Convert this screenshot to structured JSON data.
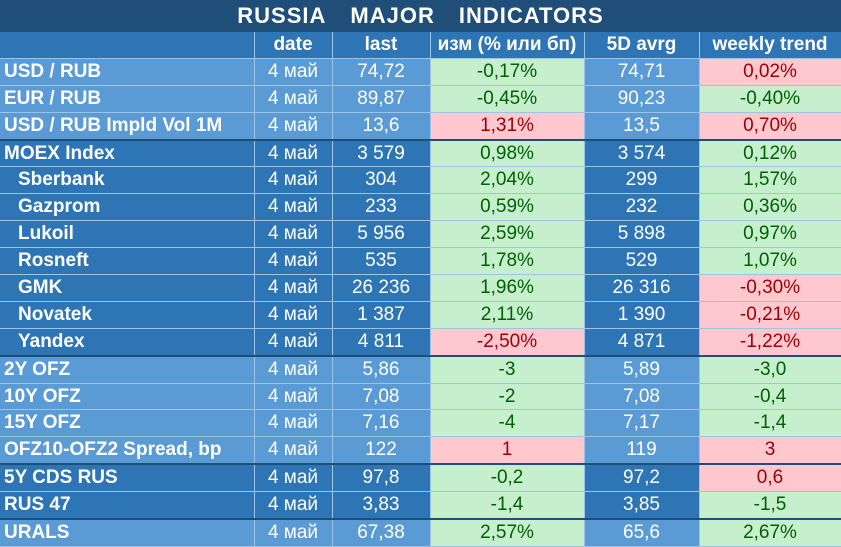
{
  "title": {
    "w1": "RUSSIA",
    "w2": "MAJOR",
    "w3": "INDICATORS"
  },
  "headers": [
    "",
    "date",
    "last",
    "изм (% или бп)",
    "5D avrg",
    "weekly trend"
  ],
  "colors": {
    "header": "#1f4e79",
    "dark_blue": "#2e75b6",
    "light_blue": "#5b9bd5",
    "pos_bg": "#c6efce",
    "pos_fg": "#006100",
    "neg_bg": "#ffc7ce",
    "neg_fg": "#9c0006"
  },
  "rows": [
    {
      "name": "USD / RUB",
      "date": "4 май",
      "last": "74,72",
      "chg": "-0,17%",
      "chg_class": "pos",
      "avg": "74,71",
      "trend": "0,02%",
      "trend_class": "neg",
      "shade": "light",
      "sub": false,
      "sep": false
    },
    {
      "name": "EUR / RUB",
      "date": "4 май",
      "last": "89,87",
      "chg": "-0,45%",
      "chg_class": "pos",
      "avg": "90,23",
      "trend": "-0,40%",
      "trend_class": "pos",
      "shade": "light",
      "sub": false,
      "sep": false
    },
    {
      "name": "USD / RUB Impld Vol 1M",
      "date": "4 май",
      "last": "13,6",
      "chg": "1,31%",
      "chg_class": "neg",
      "avg": "13,5",
      "trend": "0,70%",
      "trend_class": "neg",
      "shade": "light",
      "sub": false,
      "sep": false
    },
    {
      "name": "MOEX Index",
      "date": "4 май",
      "last": "3 579",
      "chg": "0,98%",
      "chg_class": "pos",
      "avg": "3 574",
      "trend": "0,12%",
      "trend_class": "pos",
      "shade": "dark",
      "sub": false,
      "sep": true
    },
    {
      "name": "Sberbank",
      "date": "4 май",
      "last": "304",
      "chg": "2,04%",
      "chg_class": "pos",
      "avg": "299",
      "trend": "1,57%",
      "trend_class": "pos",
      "shade": "dark",
      "sub": true,
      "sep": false
    },
    {
      "name": "Gazprom",
      "date": "4 май",
      "last": "233",
      "chg": "0,59%",
      "chg_class": "pos",
      "avg": "232",
      "trend": "0,36%",
      "trend_class": "pos",
      "shade": "dark",
      "sub": true,
      "sep": false
    },
    {
      "name": "Lukoil",
      "date": "4 май",
      "last": "5 956",
      "chg": "2,59%",
      "chg_class": "pos",
      "avg": "5 898",
      "trend": "0,97%",
      "trend_class": "pos",
      "shade": "dark",
      "sub": true,
      "sep": false
    },
    {
      "name": "Rosneft",
      "date": "4 май",
      "last": "535",
      "chg": "1,78%",
      "chg_class": "pos",
      "avg": "529",
      "trend": "1,07%",
      "trend_class": "pos",
      "shade": "dark",
      "sub": true,
      "sep": false
    },
    {
      "name": "GMK",
      "date": "4 май",
      "last": "26 236",
      "chg": "1,96%",
      "chg_class": "pos",
      "avg": "26 316",
      "trend": "-0,30%",
      "trend_class": "neg",
      "shade": "dark",
      "sub": true,
      "sep": false
    },
    {
      "name": "Novatek",
      "date": "4 май",
      "last": "1 387",
      "chg": "2,11%",
      "chg_class": "pos",
      "avg": "1 390",
      "trend": "-0,21%",
      "trend_class": "neg",
      "shade": "dark",
      "sub": true,
      "sep": false
    },
    {
      "name": "Yandex",
      "date": "4 май",
      "last": "4 811",
      "chg": "-2,50%",
      "chg_class": "neg",
      "avg": "4 871",
      "trend": "-1,22%",
      "trend_class": "neg",
      "shade": "dark",
      "sub": true,
      "sep": false
    },
    {
      "name": "2Y OFZ",
      "date": "4 май",
      "last": "5,86",
      "chg": "-3",
      "chg_class": "pos",
      "avg": "5,89",
      "trend": "-3,0",
      "trend_class": "pos",
      "shade": "light",
      "sub": false,
      "sep": true
    },
    {
      "name": "10Y OFZ",
      "date": "4 май",
      "last": "7,08",
      "chg": "-2",
      "chg_class": "pos",
      "avg": "7,08",
      "trend": "-0,4",
      "trend_class": "pos",
      "shade": "light",
      "sub": false,
      "sep": false
    },
    {
      "name": "15Y OFZ",
      "date": "4 май",
      "last": "7,16",
      "chg": "-4",
      "chg_class": "pos",
      "avg": "7,17",
      "trend": "-1,4",
      "trend_class": "pos",
      "shade": "light",
      "sub": false,
      "sep": false
    },
    {
      "name": "OFZ10-OFZ2 Spread, bp",
      "date": "4 май",
      "last": "122",
      "chg": "1",
      "chg_class": "neg",
      "avg": "119",
      "trend": "3",
      "trend_class": "neg",
      "shade": "light",
      "sub": false,
      "sep": false
    },
    {
      "name": "5Y CDS RUS",
      "date": "4 май",
      "last": "97,8",
      "chg": "-0,2",
      "chg_class": "pos",
      "avg": "97,2",
      "trend": "0,6",
      "trend_class": "neg",
      "shade": "dark",
      "sub": false,
      "sep": true
    },
    {
      "name": "RUS 47",
      "date": "4 май",
      "last": "3,83",
      "chg": "-1,4",
      "chg_class": "pos",
      "avg": "3,85",
      "trend": "-1,5",
      "trend_class": "pos",
      "shade": "dark",
      "sub": false,
      "sep": false
    },
    {
      "name": "URALS",
      "date": "4 май",
      "last": "67,38",
      "chg": "2,57%",
      "chg_class": "pos",
      "avg": "65,6",
      "trend": "2,67%",
      "trend_class": "pos",
      "shade": "light",
      "sub": false,
      "sep": true
    }
  ]
}
